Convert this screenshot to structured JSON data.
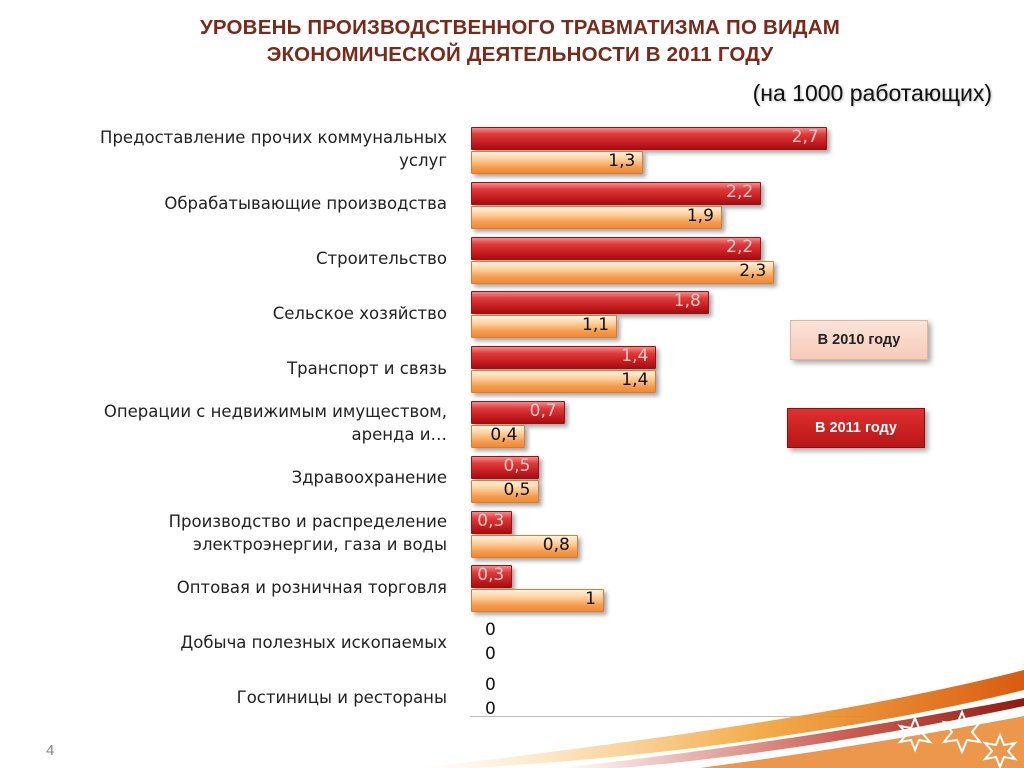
{
  "slide": {
    "title_line1": "УРОВЕНЬ ПРОИЗВОДСТВЕННОГО ТРАВМАТИЗМА ПО ВИДАМ",
    "title_line2": "ЭКОНОМИЧЕСКОЙ ДЕЯТЕЛЬНОСТИ В 2011 ГОДУ",
    "subtitle": "(на 1000 работающих)",
    "page_number": "4"
  },
  "legend": {
    "y2010": "В 2010 году",
    "y2011": "В 2011 году"
  },
  "colors": {
    "title": "#7a2a1a",
    "series_2011": "#c1191c",
    "series_2010": "#f59a4a"
  },
  "chart_data": {
    "type": "bar",
    "orientation": "horizontal",
    "categories": [
      "Предоставление прочих коммунальных услуг",
      "Обрабатывающие производства",
      "Строительство",
      "Сельское хозяйство",
      "Транспорт и связь",
      "Операции с недвижимым имуществом, аренда и…",
      "Здравоохранение",
      "Производство и распределение электроэнергии, газа и воды",
      "Оптовая и розничная торговля",
      "Добыча полезных ископаемых",
      "Гостиницы и рестораны"
    ],
    "series": [
      {
        "name": "В 2011 году",
        "values": [
          2.7,
          2.2,
          2.2,
          1.8,
          1.4,
          0.7,
          0.5,
          0.3,
          0.3,
          0,
          0
        ],
        "labels": [
          "2,7",
          "2,2",
          "2,2",
          "1,8",
          "1,4",
          "0,7",
          "0,5",
          "0,3",
          "0,3",
          "0",
          "0"
        ]
      },
      {
        "name": "В 2010 году",
        "values": [
          1.3,
          1.9,
          2.3,
          1.1,
          1.4,
          0.4,
          0.5,
          0.8,
          1,
          0,
          0
        ],
        "labels": [
          "1,3",
          "1,9",
          "2,3",
          "1,1",
          "1,4",
          "0,4",
          "0,5",
          "0,8",
          "1",
          "0",
          "0"
        ]
      }
    ],
    "xlim": [
      0,
      3
    ],
    "legend_position": "right",
    "grid": false
  }
}
